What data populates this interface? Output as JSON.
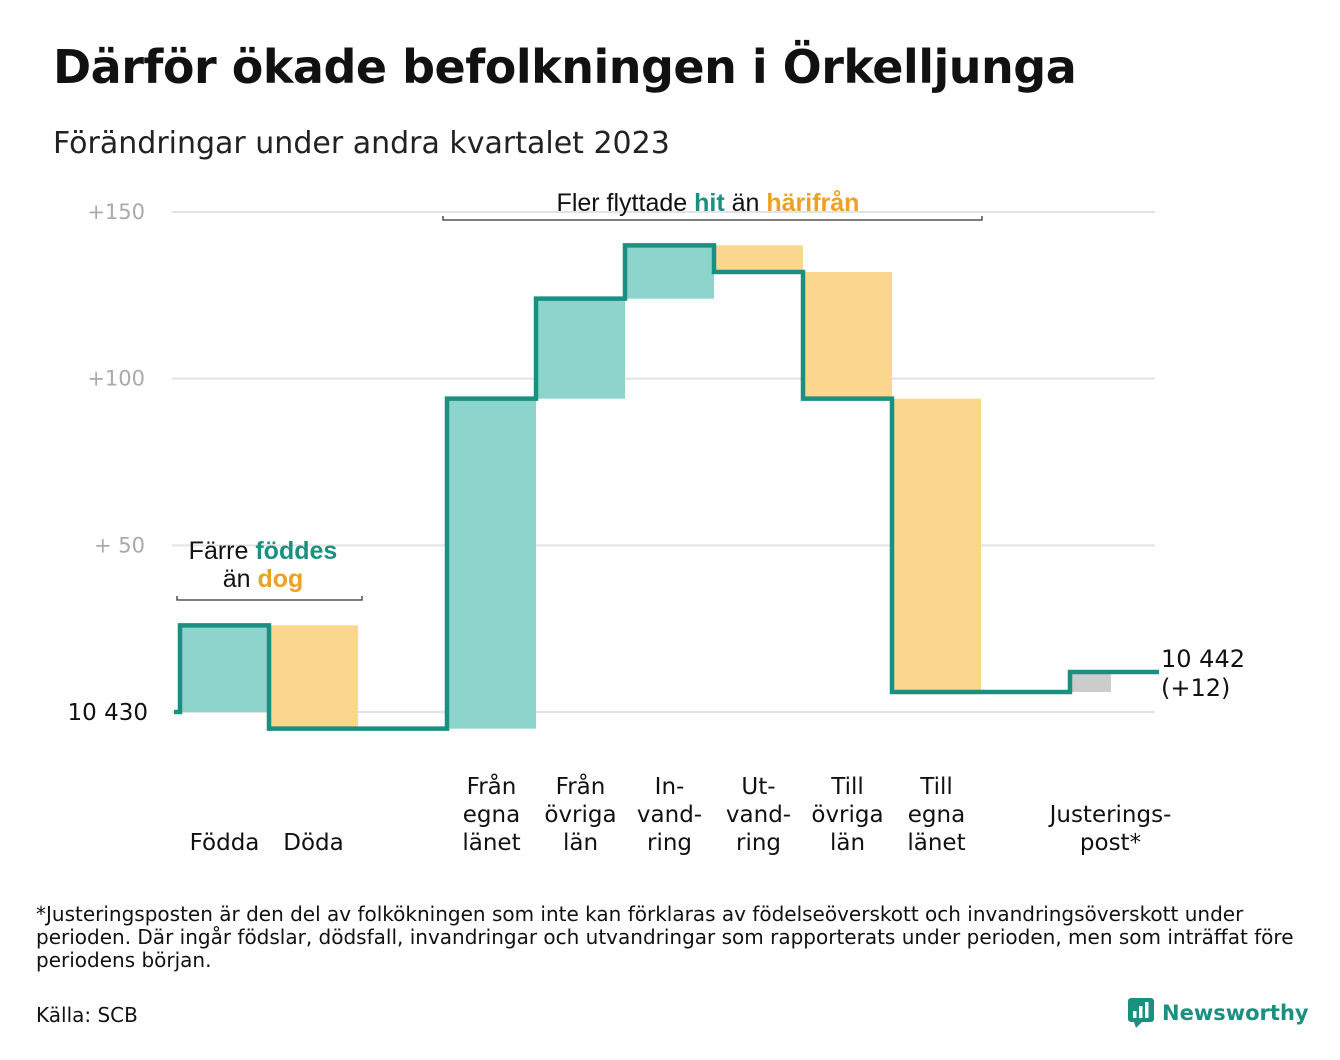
{
  "title": "Därför ökade befolkningen i Örkelljunga",
  "subtitle": "Förändringar under andra kvartalet 2023",
  "chart_data": {
    "type": "waterfall",
    "base_value": 10430,
    "ylim": [
      -10,
      150
    ],
    "y_ticks": [
      {
        "value": 150,
        "label": "+150"
      },
      {
        "value": 100,
        "label": "+100"
      },
      {
        "value": 50,
        "label": "+  50"
      }
    ],
    "base_label_left": "10  430",
    "end_label": {
      "value": "10 442",
      "change": "(+12)"
    },
    "categories": [
      {
        "key": "fodda",
        "label": [
          "Födda"
        ],
        "change": 26,
        "kind": "plus"
      },
      {
        "key": "doda",
        "label": [
          "Döda"
        ],
        "change": -31,
        "kind": "minus"
      },
      {
        "key": "gap",
        "label": [],
        "change": 0,
        "kind": "none"
      },
      {
        "key": "fran-egna",
        "label": [
          "Från",
          "egna",
          "länet"
        ],
        "change": 99,
        "kind": "plus"
      },
      {
        "key": "fran-ovriga",
        "label": [
          "Från",
          "övriga",
          "län"
        ],
        "change": 30,
        "kind": "plus"
      },
      {
        "key": "invandring",
        "label": [
          "In-",
          "vand-",
          "ring"
        ],
        "change": 16,
        "kind": "plus"
      },
      {
        "key": "utvandring",
        "label": [
          "Ut-",
          "vand-",
          "ring"
        ],
        "change": -8,
        "kind": "minus"
      },
      {
        "key": "till-ovriga",
        "label": [
          "Till",
          "övriga",
          "län"
        ],
        "change": -38,
        "kind": "minus"
      },
      {
        "key": "till-egna",
        "label": [
          "Till",
          "egna",
          "länet"
        ],
        "change": -88,
        "kind": "minus"
      },
      {
        "key": "gap2",
        "label": [],
        "change": 0,
        "kind": "none"
      },
      {
        "key": "justering",
        "label": [
          "Justerings-",
          "post*"
        ],
        "change": 6,
        "kind": "adjust"
      }
    ],
    "annotations": [
      {
        "key": "births",
        "parts": [
          {
            "text": "Färre ",
            "style": "plain"
          },
          {
            "text": "föddes",
            "style": "plus"
          }
        ],
        "parts2": [
          {
            "text": "än ",
            "style": "plain"
          },
          {
            "text": "dog",
            "style": "minus"
          }
        ]
      },
      {
        "key": "migration",
        "parts": [
          {
            "text": "Fler flyttade ",
            "style": "plain"
          },
          {
            "text": "hit",
            "style": "plus"
          },
          {
            "text": "  än ",
            "style": "plain"
          },
          {
            "text": "härifrån",
            "style": "minus"
          }
        ]
      }
    ],
    "colors": {
      "plus_fill": "#8dd5cc",
      "minus_fill": "#fad68f",
      "adjust_fill": "#cccccc",
      "line": "#1a9080",
      "plus_text": "#1a9080",
      "minus_text": "#f0a020",
      "grid": "#e3e3e3",
      "tick_text": "#aaaaaa"
    }
  },
  "footnote": "*Justeringsposten är den del av folkökningen som inte kan förklaras av födelseöverskott och invandringsöverskott under perioden. Där ingår födslar, dödsfall, invandringar och utvandringar som rapporterats under perioden, men som inträffat före periodens början.",
  "source": "Källa: SCB",
  "brand": {
    "name": "Newsworthy",
    "icon": "newsworthy-logo-icon"
  }
}
